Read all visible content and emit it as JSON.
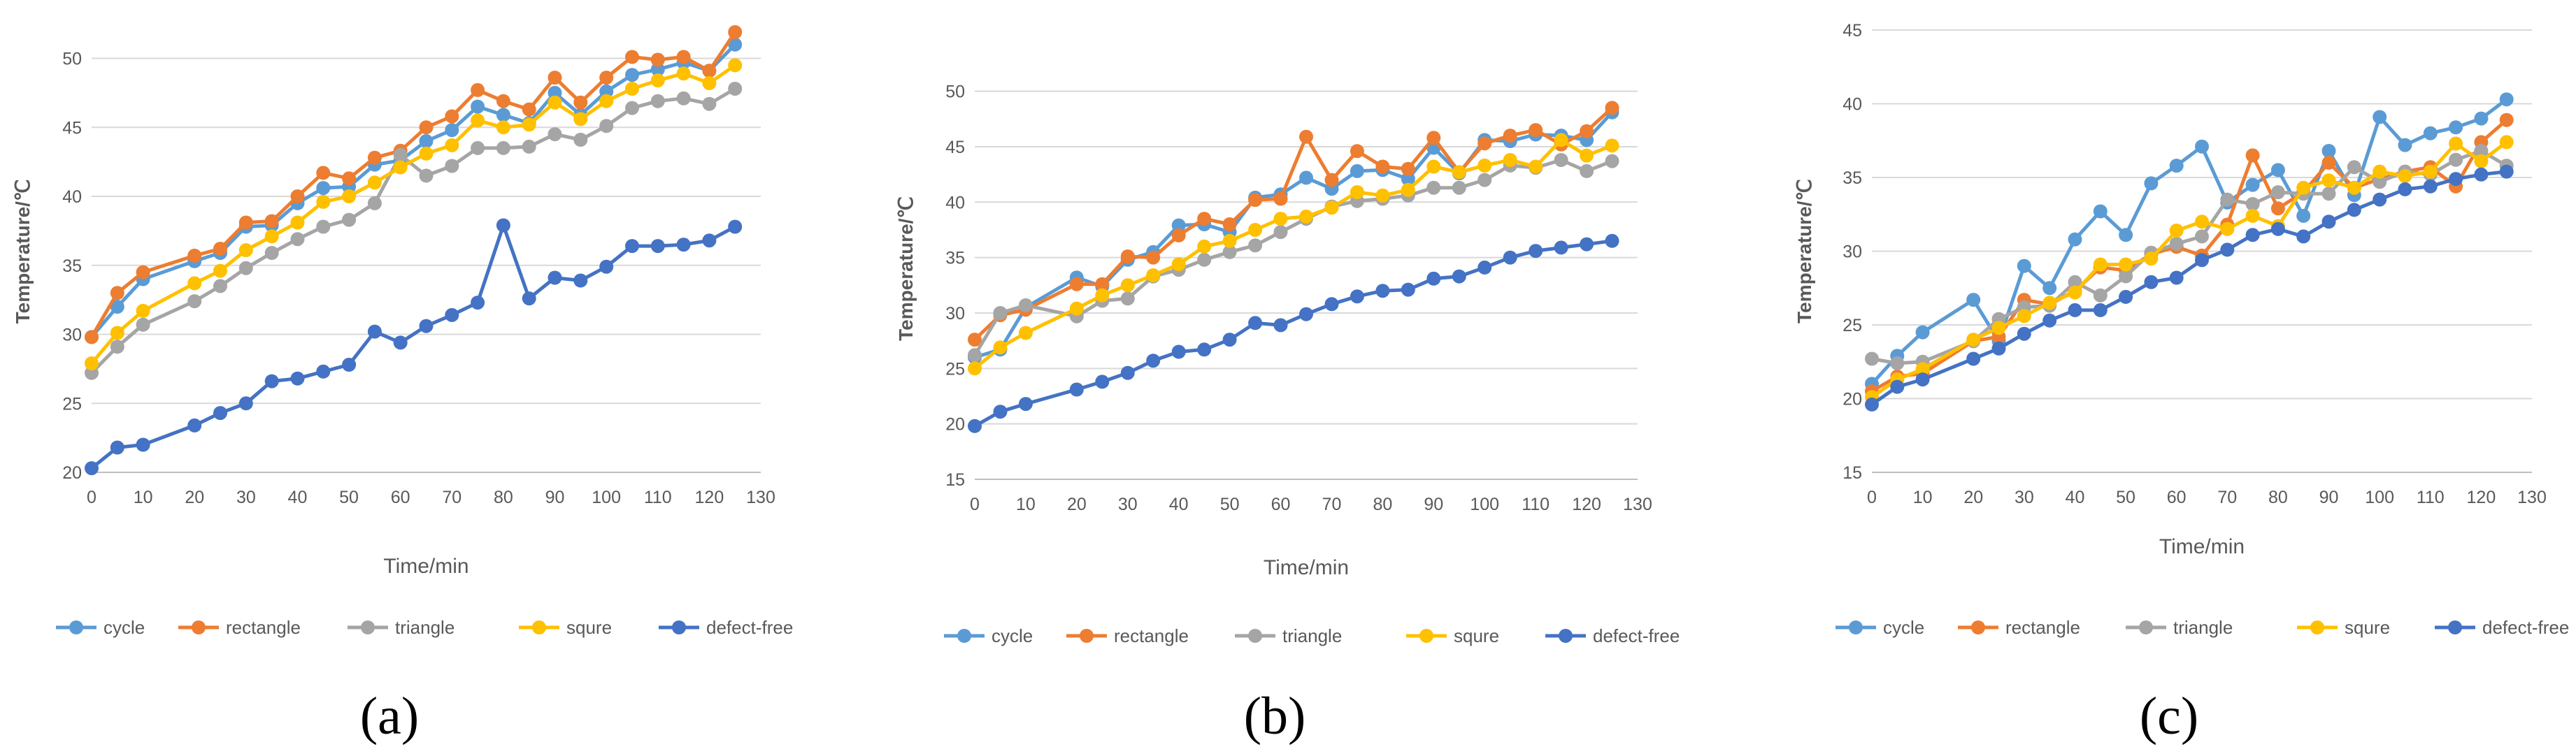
{
  "figure": {
    "panel_labels": [
      "(a)",
      "(b)",
      "(c)"
    ]
  },
  "chart_data": [
    {
      "type": "line",
      "panel": "(a)",
      "title": "",
      "xlabel": "Time/min",
      "ylabel": "Temperature/℃",
      "xlim": [
        0,
        130
      ],
      "ylim": [
        20,
        52
      ],
      "xticks": [
        0,
        10,
        20,
        30,
        40,
        50,
        60,
        70,
        80,
        90,
        100,
        110,
        120,
        130
      ],
      "yticks": [
        20,
        25,
        30,
        35,
        40,
        45,
        50
      ],
      "grid": true,
      "legend_position": "bottom",
      "x": [
        0,
        5,
        10,
        20,
        25,
        30,
        35,
        40,
        45,
        50,
        55,
        60,
        65,
        70,
        75,
        80,
        85,
        90,
        95,
        100,
        105,
        110,
        115,
        120,
        125
      ],
      "series": [
        {
          "name": "cycle",
          "color": "#5B9BD5",
          "values": [
            29.8,
            32.0,
            34.0,
            35.3,
            35.9,
            37.8,
            37.9,
            39.5,
            40.6,
            40.7,
            42.3,
            42.6,
            44.0,
            44.8,
            46.5,
            45.9,
            45.3,
            47.5,
            45.9,
            47.6,
            48.8,
            49.2,
            49.7,
            49.1,
            51.0
          ]
        },
        {
          "name": "rectangle",
          "color": "#ED7D31",
          "values": [
            29.8,
            33.0,
            34.5,
            35.7,
            36.2,
            38.1,
            38.2,
            40.0,
            41.7,
            41.3,
            42.8,
            43.3,
            45.0,
            45.8,
            47.7,
            46.9,
            46.3,
            48.6,
            46.8,
            48.6,
            50.1,
            49.9,
            50.1,
            49.1,
            51.9
          ]
        },
        {
          "name": "triangle",
          "color": "#A5A5A5",
          "values": [
            27.2,
            29.1,
            30.7,
            32.4,
            33.5,
            34.8,
            35.9,
            36.9,
            37.8,
            38.3,
            39.5,
            43.0,
            41.5,
            42.2,
            43.5,
            43.5,
            43.6,
            44.5,
            44.1,
            45.1,
            46.4,
            46.9,
            47.1,
            46.7,
            47.8
          ]
        },
        {
          "name": "squre",
          "color": "#FFC000",
          "values": [
            27.9,
            30.1,
            31.7,
            33.7,
            34.6,
            36.1,
            37.1,
            38.1,
            39.6,
            40.0,
            41.0,
            42.1,
            43.1,
            43.7,
            45.5,
            45.0,
            45.2,
            46.8,
            45.6,
            46.9,
            47.8,
            48.4,
            48.9,
            48.2,
            49.5
          ]
        },
        {
          "name": "defect-free",
          "color": "#4472C4",
          "values": [
            20.3,
            21.8,
            22.0,
            23.4,
            24.3,
            25.0,
            26.6,
            26.8,
            27.3,
            27.8,
            30.2,
            29.4,
            30.6,
            31.4,
            32.3,
            37.9,
            32.6,
            34.1,
            33.9,
            34.9,
            36.4,
            36.4,
            36.5,
            36.8,
            37.8
          ]
        }
      ]
    },
    {
      "type": "line",
      "panel": "(b)",
      "title": "",
      "xlabel": "Time/min",
      "ylabel": "Temperature/℃",
      "xlim": [
        0,
        130
      ],
      "ylim": [
        15,
        53
      ],
      "xticks": [
        0,
        10,
        20,
        30,
        40,
        50,
        60,
        70,
        80,
        90,
        100,
        110,
        120,
        130
      ],
      "yticks": [
        15,
        20,
        25,
        30,
        35,
        40,
        45,
        50
      ],
      "grid": true,
      "legend_position": "bottom",
      "x": [
        0,
        5,
        10,
        20,
        25,
        30,
        35,
        40,
        45,
        50,
        55,
        60,
        65,
        70,
        75,
        80,
        85,
        90,
        95,
        100,
        105,
        110,
        115,
        120,
        125
      ],
      "series": [
        {
          "name": "cycle",
          "color": "#5B9BD5",
          "values": [
            26.0,
            26.7,
            30.5,
            33.2,
            32.4,
            34.8,
            35.5,
            37.9,
            38.0,
            37.3,
            40.4,
            40.7,
            42.2,
            41.2,
            42.8,
            42.9,
            42.1,
            44.9,
            42.6,
            45.6,
            45.5,
            46.1,
            46.0,
            45.6,
            48.1
          ]
        },
        {
          "name": "rectangle",
          "color": "#ED7D31",
          "values": [
            27.6,
            29.8,
            30.3,
            32.6,
            32.6,
            35.1,
            35.0,
            37.0,
            38.5,
            38.0,
            40.2,
            40.3,
            45.9,
            42.0,
            44.6,
            43.2,
            43.0,
            45.8,
            42.7,
            45.3,
            46.0,
            46.5,
            45.2,
            46.4,
            48.5
          ]
        },
        {
          "name": "triangle",
          "color": "#A5A5A5",
          "values": [
            26.2,
            30.0,
            30.7,
            29.7,
            31.1,
            31.3,
            33.3,
            33.9,
            34.8,
            35.5,
            36.1,
            37.3,
            38.5,
            39.6,
            40.1,
            40.3,
            40.6,
            41.3,
            41.3,
            42.0,
            43.3,
            43.1,
            43.8,
            42.8,
            43.7
          ]
        },
        {
          "name": "squre",
          "color": "#FFC000",
          "values": [
            25.0,
            26.9,
            28.2,
            30.4,
            31.6,
            32.5,
            33.4,
            34.4,
            36.0,
            36.5,
            37.5,
            38.5,
            38.7,
            39.5,
            40.9,
            40.6,
            41.1,
            43.2,
            42.7,
            43.3,
            43.8,
            43.2,
            45.6,
            44.2,
            45.1
          ]
        },
        {
          "name": "defect-free",
          "color": "#4472C4",
          "values": [
            19.8,
            21.1,
            21.8,
            23.1,
            23.8,
            24.6,
            25.7,
            26.5,
            26.7,
            27.6,
            29.1,
            28.9,
            29.9,
            30.8,
            31.5,
            32.0,
            32.1,
            33.1,
            33.3,
            34.1,
            35.0,
            35.6,
            35.9,
            36.2,
            36.5
          ]
        }
      ]
    },
    {
      "type": "line",
      "panel": "(c)",
      "title": "",
      "xlabel": "Time/min",
      "ylabel": "Temperature/℃",
      "xlim": [
        0,
        130
      ],
      "ylim": [
        15,
        45
      ],
      "xticks": [
        0,
        10,
        20,
        30,
        40,
        50,
        60,
        70,
        80,
        90,
        100,
        110,
        120,
        130
      ],
      "yticks": [
        15,
        20,
        25,
        30,
        35,
        40,
        45
      ],
      "grid": true,
      "legend_position": "bottom",
      "x": [
        0,
        5,
        10,
        20,
        25,
        30,
        35,
        40,
        45,
        50,
        55,
        60,
        65,
        70,
        75,
        80,
        85,
        90,
        95,
        100,
        105,
        110,
        115,
        120,
        125
      ],
      "series": [
        {
          "name": "cycle",
          "color": "#5B9BD5",
          "values": [
            21.0,
            22.9,
            24.5,
            26.7,
            23.9,
            29.0,
            27.5,
            30.8,
            32.7,
            31.1,
            34.6,
            35.8,
            37.1,
            33.3,
            34.5,
            35.5,
            32.4,
            36.8,
            33.8,
            39.1,
            37.2,
            38.0,
            38.4,
            39.0,
            40.3
          ]
        },
        {
          "name": "rectangle",
          "color": "#ED7D31",
          "values": [
            20.5,
            21.5,
            21.7,
            23.9,
            24.2,
            26.7,
            26.4,
            27.3,
            28.9,
            28.7,
            29.8,
            30.3,
            29.7,
            31.8,
            36.5,
            32.9,
            34.0,
            36.0,
            34.3,
            34.9,
            35.4,
            35.7,
            34.4,
            37.4,
            38.9
          ]
        },
        {
          "name": "triangle",
          "color": "#A5A5A5",
          "values": [
            22.7,
            22.4,
            22.5,
            23.9,
            25.4,
            26.2,
            26.3,
            27.9,
            27.0,
            28.3,
            29.9,
            30.5,
            31.0,
            33.5,
            33.2,
            34.0,
            33.9,
            33.9,
            35.7,
            34.7,
            35.4,
            35.2,
            36.2,
            36.8,
            35.8
          ]
        },
        {
          "name": "squre",
          "color": "#FFC000",
          "values": [
            20.1,
            21.3,
            22.0,
            24.0,
            24.8,
            25.6,
            26.5,
            27.2,
            29.1,
            29.1,
            29.5,
            31.4,
            32.0,
            31.5,
            32.4,
            31.7,
            34.3,
            34.8,
            34.3,
            35.4,
            35.1,
            35.4,
            37.3,
            36.1,
            37.4
          ]
        },
        {
          "name": "defect-free",
          "color": "#4472C4",
          "values": [
            19.6,
            20.8,
            21.3,
            22.7,
            23.4,
            24.4,
            25.3,
            26.0,
            26.0,
            26.9,
            27.9,
            28.2,
            29.4,
            30.1,
            31.1,
            31.5,
            31.0,
            32.0,
            32.8,
            33.5,
            34.2,
            34.4,
            34.9,
            35.2,
            35.4
          ]
        }
      ]
    }
  ]
}
